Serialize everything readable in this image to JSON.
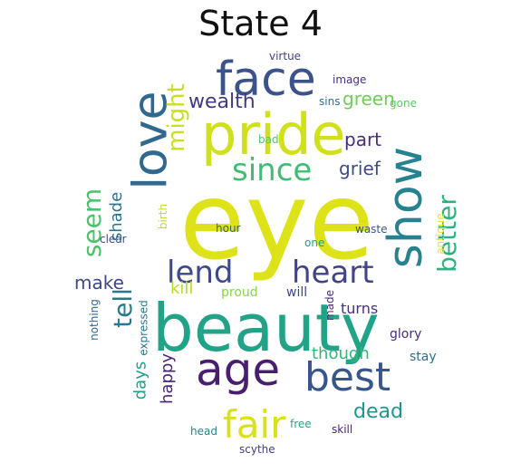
{
  "title": "State 4",
  "words": [
    {
      "text": "eye",
      "color": "#dde318",
      "vertical": false
    },
    {
      "text": "beauty",
      "color": "#20a386",
      "vertical": false
    },
    {
      "text": "pride",
      "color": "#d0e11c",
      "vertical": false
    },
    {
      "text": "face",
      "color": "#3b528b",
      "vertical": false
    },
    {
      "text": "love",
      "color": "#31688e",
      "vertical": true
    },
    {
      "text": "show",
      "color": "#26828e",
      "vertical": true
    },
    {
      "text": "age",
      "color": "#481f70",
      "vertical": false
    },
    {
      "text": "best",
      "color": "#39568c",
      "vertical": false
    },
    {
      "text": "fair",
      "color": "#d8e219",
      "vertical": false
    },
    {
      "text": "since",
      "color": "#40bd72",
      "vertical": false
    },
    {
      "text": "might",
      "color": "#c8e020",
      "vertical": true
    },
    {
      "text": "lend",
      "color": "#3e4989",
      "vertical": false
    },
    {
      "text": "heart",
      "color": "#414487",
      "vertical": false
    },
    {
      "text": "tell",
      "color": "#2a788e",
      "vertical": true
    },
    {
      "text": "seem",
      "color": "#4ac16d",
      "vertical": true
    },
    {
      "text": "better",
      "color": "#2db27d",
      "vertical": true
    },
    {
      "text": "wealth",
      "color": "#453781",
      "vertical": false
    },
    {
      "text": "green",
      "color": "#6ece58",
      "vertical": false
    },
    {
      "text": "grief",
      "color": "#3e4a89",
      "vertical": false
    },
    {
      "text": "part",
      "color": "#472d7b",
      "vertical": false
    },
    {
      "text": "shade",
      "color": "#2c728e",
      "vertical": true
    },
    {
      "text": "dead",
      "color": "#1f968b",
      "vertical": false
    },
    {
      "text": "happy",
      "color": "#482576",
      "vertical": true
    },
    {
      "text": "days",
      "color": "#1fa088",
      "vertical": true
    },
    {
      "text": "make",
      "color": "#3f4788",
      "vertical": false
    },
    {
      "text": "kill",
      "color": "#b5de2b",
      "vertical": false
    },
    {
      "text": "turns",
      "color": "#46327e",
      "vertical": false
    },
    {
      "text": "glory",
      "color": "#472c7a",
      "vertical": false
    },
    {
      "text": "though",
      "color": "#34b679",
      "vertical": false
    },
    {
      "text": "stay",
      "color": "#2e6e8e",
      "vertical": false
    },
    {
      "text": "skill",
      "color": "#482878",
      "vertical": false
    },
    {
      "text": "free",
      "color": "#22a884",
      "vertical": false
    },
    {
      "text": "head",
      "color": "#25848e",
      "vertical": false
    },
    {
      "text": "scythe",
      "color": "#433e85",
      "vertical": false
    },
    {
      "text": "proud",
      "color": "#86d549",
      "vertical": false
    },
    {
      "text": "will",
      "color": "#404688",
      "vertical": false
    },
    {
      "text": "made",
      "color": "#482979",
      "vertical": true
    },
    {
      "text": "expressed",
      "color": "#2b758e",
      "vertical": true
    },
    {
      "text": "nothing",
      "color": "#30698e",
      "vertical": true
    },
    {
      "text": "birth",
      "color": "#bddf26",
      "vertical": true
    },
    {
      "text": "hour",
      "color": "#365c8d",
      "vertical": false
    },
    {
      "text": "one",
      "color": "#1fa187",
      "vertical": false
    },
    {
      "text": "waste",
      "color": "#39558c",
      "vertical": false
    },
    {
      "text": "antique",
      "color": "#f1e51d",
      "vertical": true
    },
    {
      "text": "clear",
      "color": "#3c4f8a",
      "vertical": false
    },
    {
      "text": "virtue",
      "color": "#404588",
      "vertical": false
    },
    {
      "text": "image",
      "color": "#46307e",
      "vertical": false
    },
    {
      "text": "sins",
      "color": "#2d708e",
      "vertical": false
    },
    {
      "text": "gone",
      "color": "#5cc863",
      "vertical": false
    },
    {
      "text": "bad",
      "color": "#52c569",
      "vertical": false
    }
  ]
}
